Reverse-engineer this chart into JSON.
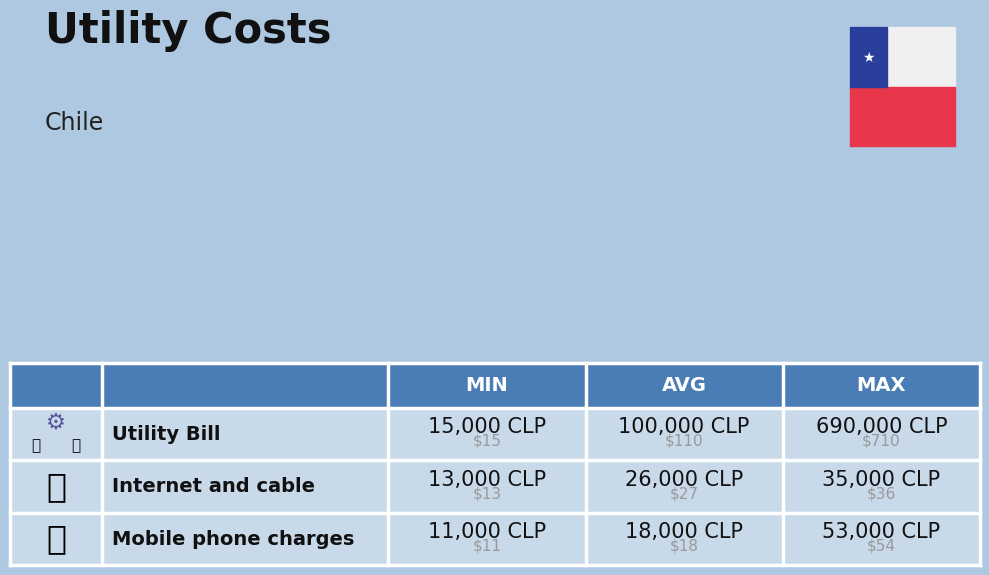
{
  "title": "Utility Costs",
  "subtitle": "Chile",
  "background_color": "#adc8e0",
  "header_color": "#4a7db5",
  "header_text_color": "#ffffff",
  "row_color": "#c8daea",
  "separator_color": "#ffffff",
  "col_headers": [
    "MIN",
    "AVG",
    "MAX"
  ],
  "rows": [
    {
      "label": "Utility Bill",
      "min_clp": "15,000 CLP",
      "min_usd": "$15",
      "avg_clp": "100,000 CLP",
      "avg_usd": "$110",
      "max_clp": "690,000 CLP",
      "max_usd": "$710"
    },
    {
      "label": "Internet and cable",
      "min_clp": "13,000 CLP",
      "min_usd": "$13",
      "avg_clp": "26,000 CLP",
      "avg_usd": "$27",
      "max_clp": "35,000 CLP",
      "max_usd": "$36"
    },
    {
      "label": "Mobile phone charges",
      "min_clp": "11,000 CLP",
      "min_usd": "$11",
      "avg_clp": "18,000 CLP",
      "avg_usd": "$18",
      "max_clp": "53,000 CLP",
      "max_usd": "$54"
    }
  ],
  "label_fontsize": 14,
  "value_fontsize": 15,
  "usd_fontsize": 11,
  "header_fontsize": 14,
  "title_fontsize": 30,
  "subtitle_fontsize": 17,
  "flag_red": "#e8374a",
  "flag_blue": "#2a3e9c",
  "flag_white": "#f0f0f0"
}
